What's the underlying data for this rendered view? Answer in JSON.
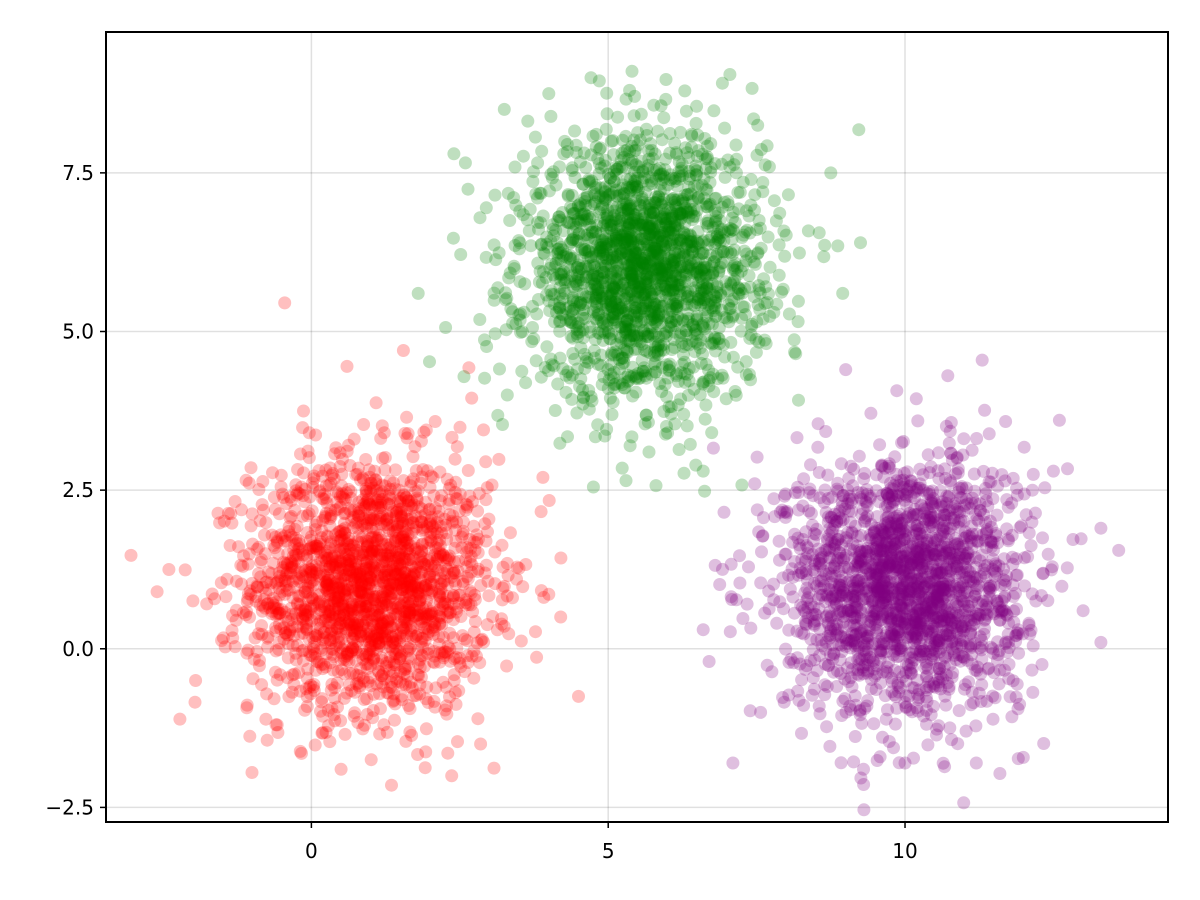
{
  "chart_data": {
    "type": "scatter",
    "title": "",
    "xlabel": "",
    "ylabel": "",
    "xlim": [
      -3.46,
      14.43
    ],
    "ylim": [
      -2.73,
      9.72
    ],
    "x_ticks": [
      0,
      5,
      10
    ],
    "x_tick_labels": [
      "0",
      "5",
      "10"
    ],
    "y_ticks": [
      -2.5,
      0.0,
      2.5,
      5.0,
      7.5
    ],
    "y_tick_labels": [
      "−2.5",
      "0.0",
      "2.5",
      "5.0",
      "7.5"
    ],
    "grid": true,
    "legend": "none",
    "point_alpha": 0.25,
    "series": [
      {
        "color": "#ff0000",
        "distribution": "gaussian",
        "mean": [
          1.0,
          1.0
        ],
        "std": [
          1.0,
          1.0
        ],
        "n": 2000,
        "points": [
          [
            -2.6,
            0.9
          ],
          [
            -2.4,
            1.25
          ],
          [
            -0.45,
            5.45
          ],
          [
            1.55,
            4.7
          ],
          [
            0.6,
            4.45
          ],
          [
            4.5,
            -0.75
          ],
          [
            1.35,
            -2.15
          ],
          [
            -1.0,
            -1.95
          ],
          [
            4.2,
            0.5
          ],
          [
            3.9,
            2.7
          ],
          [
            2.85,
            -1.5
          ],
          [
            2.9,
            3.45
          ],
          [
            -1.95,
            -0.5
          ],
          [
            0.5,
            -1.9
          ],
          [
            2.7,
            3.95
          ]
        ]
      },
      {
        "color": "#008000",
        "distribution": "gaussian",
        "mean": [
          5.6,
          6.0
        ],
        "std": [
          1.0,
          1.0
        ],
        "n": 2000,
        "points": [
          [
            5.4,
            9.1
          ],
          [
            7.05,
            9.05
          ],
          [
            4.85,
            8.95
          ],
          [
            2.4,
            7.8
          ],
          [
            9.25,
            6.4
          ],
          [
            8.95,
            5.6
          ],
          [
            1.8,
            5.6
          ],
          [
            6.6,
            2.8
          ],
          [
            4.75,
            2.55
          ],
          [
            5.3,
            2.65
          ],
          [
            3.25,
            8.5
          ],
          [
            8.75,
            7.5
          ],
          [
            3.3,
            4.0
          ],
          [
            7.45,
            8.35
          ],
          [
            4.0,
            8.75
          ]
        ]
      },
      {
        "color": "#800080",
        "distribution": "gaussian",
        "mean": [
          10.0,
          1.0
        ],
        "std": [
          1.0,
          1.0
        ],
        "n": 2000,
        "points": [
          [
            11.3,
            4.55
          ],
          [
            13.6,
            1.55
          ],
          [
            13.3,
            1.9
          ],
          [
            13.3,
            0.1
          ],
          [
            7.1,
            -1.8
          ],
          [
            9.3,
            -1.9
          ],
          [
            6.6,
            0.3
          ],
          [
            6.7,
            -0.2
          ],
          [
            12.5,
            2.8
          ],
          [
            12.6,
            3.6
          ],
          [
            9.0,
            4.4
          ],
          [
            10.0,
            -1.8
          ],
          [
            11.2,
            -1.8
          ],
          [
            13.0,
            0.6
          ],
          [
            6.95,
            2.15
          ]
        ]
      }
    ]
  }
}
